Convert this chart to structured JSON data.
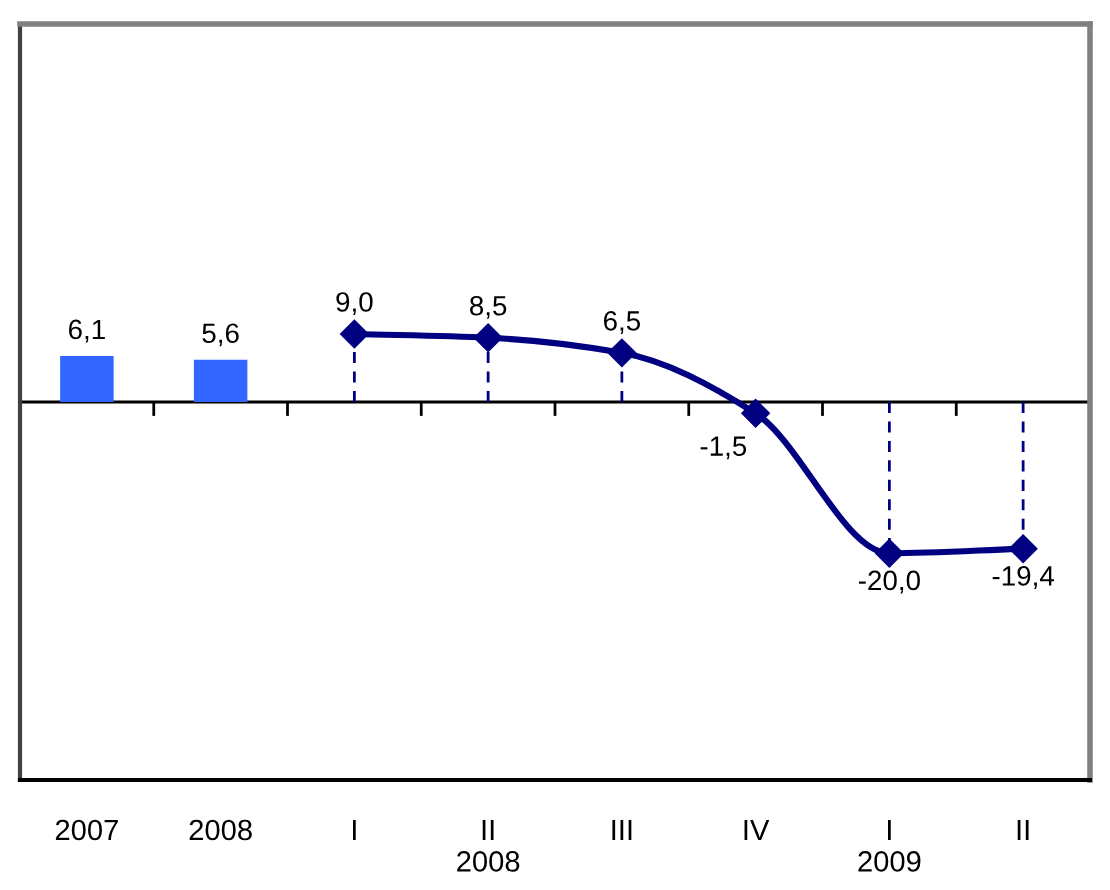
{
  "chart_data": {
    "type": "bar",
    "categories": [
      "2007",
      "2008",
      "I",
      "II\n2008",
      "III",
      "IV",
      "I\n2009",
      "II"
    ],
    "series": [
      {
        "color": "#3366ff",
        "values": [
          6.1,
          5.6,
          null,
          null,
          null,
          null,
          null,
          null
        ],
        "value_labels": [
          "6,1",
          "5,6",
          null,
          null,
          null,
          null,
          null,
          null
        ]
      },
      {
        "type": "line",
        "color": "#000080",
        "values": [
          null,
          null,
          9.0,
          8.5,
          6.5,
          -1.5,
          -20.0,
          -19.4
        ],
        "value_labels": [
          null,
          null,
          "9,0",
          "8,5",
          "6,5",
          "-1,5",
          "-20,0",
          "-19,4"
        ]
      },
      {
        "type": "lollipop",
        "color": "#000080",
        "line_style": "dashed",
        "marker": "diamond",
        "values": [
          null,
          null,
          9.0,
          8.5,
          6.5,
          -1.5,
          -20.0,
          -19.4
        ]
      }
    ],
    "ylim": [
      -50,
      50
    ],
    "tick_labels": "x"
  }
}
